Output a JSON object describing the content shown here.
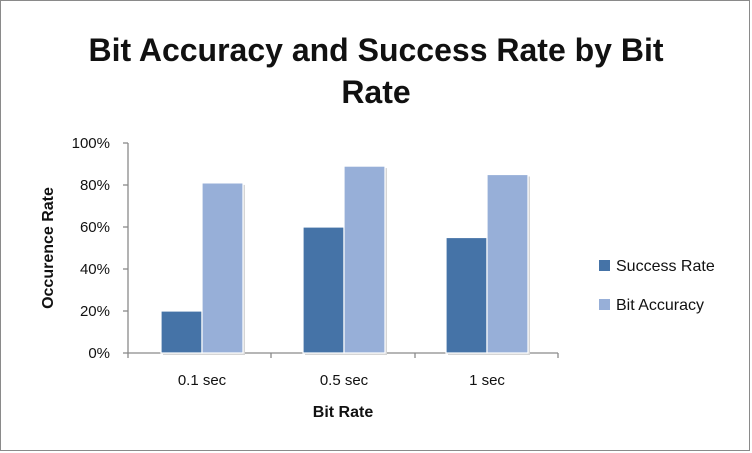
{
  "chart_data": {
    "type": "bar",
    "title": "Bit Accuracy and Success Rate by Bit Rate",
    "xlabel": "Bit Rate",
    "ylabel": "Occurence Rate",
    "categories": [
      "0.1 sec",
      "0.5 sec",
      "1 sec"
    ],
    "ylim": [
      0,
      100
    ],
    "yticks": [
      "0%",
      "20%",
      "40%",
      "60%",
      "80%",
      "100%"
    ],
    "grid": false,
    "legend_position": "right",
    "series": [
      {
        "name": "Success Rate",
        "values": [
          20,
          60,
          55
        ],
        "color": "#4573A7"
      },
      {
        "name": "Bit Accuracy",
        "values": [
          81,
          89,
          85
        ],
        "color": "#97AFD8"
      }
    ]
  }
}
